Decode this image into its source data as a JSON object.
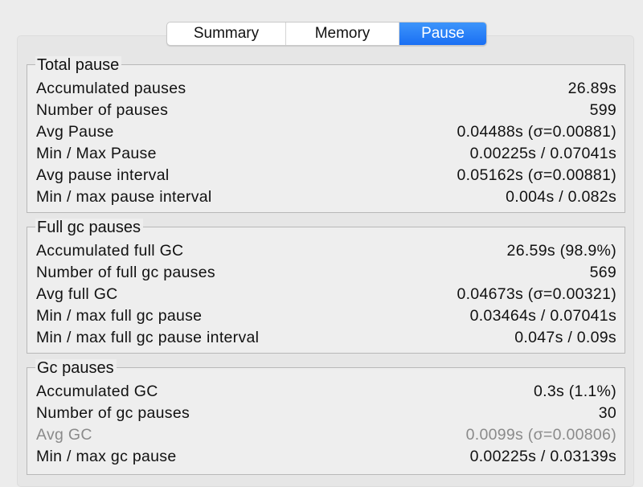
{
  "tabs": [
    {
      "label": "Summary",
      "active": false
    },
    {
      "label": "Memory",
      "active": false
    },
    {
      "label": "Pause",
      "active": true
    }
  ],
  "accent_color": "#1a6ff3",
  "groups": [
    {
      "title": "Total pause",
      "rows": [
        {
          "label": "Accumulated pauses",
          "value": "26.89s"
        },
        {
          "label": "Number of pauses",
          "value": "599"
        },
        {
          "label": "Avg Pause",
          "value": "0.04488s (σ=0.00881)"
        },
        {
          "label": "Min / Max Pause",
          "value": "0.00225s / 0.07041s"
        },
        {
          "label": "Avg pause interval",
          "value": "0.05162s (σ=0.00881)"
        },
        {
          "label": "Min / max pause interval",
          "value": "0.004s / 0.082s"
        }
      ]
    },
    {
      "title": "Full gc pauses",
      "rows": [
        {
          "label": "Accumulated full GC",
          "value": "26.59s (98.9%)"
        },
        {
          "label": "Number of full gc pauses",
          "value": "569"
        },
        {
          "label": "Avg full GC",
          "value": "0.04673s (σ=0.00321)"
        },
        {
          "label": "Min / max full gc pause",
          "value": "0.03464s / 0.07041s"
        },
        {
          "label": "Min / max full gc pause interval",
          "value": "0.047s / 0.09s"
        }
      ]
    },
    {
      "title": "Gc pauses",
      "rows": [
        {
          "label": "Accumulated GC",
          "value": "0.3s (1.1%)"
        },
        {
          "label": "Number of gc pauses",
          "value": "30"
        },
        {
          "label": "Avg GC",
          "value": "0.0099s (σ=0.00806)",
          "disabled": true
        },
        {
          "label": "Min / max gc pause",
          "value": "0.00225s / 0.03139s"
        }
      ]
    }
  ]
}
